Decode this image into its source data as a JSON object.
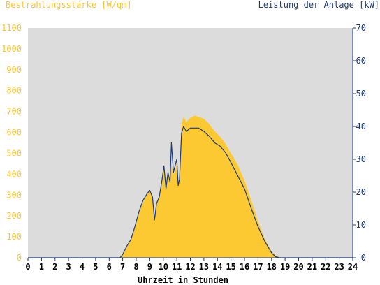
{
  "colors": {
    "irradiance_fill": "#fdc932",
    "power_line": "#1e3a78",
    "plot_background": "#dcdcdc",
    "left_axis_text": "#fcc72f",
    "right_axis_text": "#1e3a78"
  },
  "chart_data": {
    "type": "area",
    "title": "",
    "left_axis_title": "Bestrahlungsstärke [W/qm]",
    "right_axis_title": "Leistung der Anlage [kW]",
    "xlabel": "Uhrzeit in Stunden",
    "xlim": [
      0,
      24
    ],
    "ylim_left": [
      0,
      1100
    ],
    "ylim_right": [
      0,
      70
    ],
    "x_ticks": [
      "0",
      "1",
      "2",
      "3",
      "4",
      "5",
      "6",
      "7",
      "8",
      "9",
      "10",
      "11",
      "12",
      "13",
      "14",
      "15",
      "16",
      "17",
      "18",
      "19",
      "20",
      "21",
      "22",
      "23",
      "24"
    ],
    "y_ticks_left": [
      "0",
      "100",
      "200",
      "300",
      "400",
      "500",
      "600",
      "700",
      "800",
      "900",
      "1000",
      "1100"
    ],
    "y_ticks_right": [
      "0",
      "10",
      "20",
      "30",
      "40",
      "50",
      "60",
      "70"
    ],
    "grid": false,
    "series": [
      {
        "name": "Bestrahlungsstärke [W/qm]",
        "type": "area",
        "axis": "left",
        "x": [
          0,
          6.7,
          7.0,
          7.3,
          7.6,
          7.9,
          8.2,
          8.5,
          8.8,
          9.0,
          9.2,
          9.35,
          9.5,
          9.7,
          9.9,
          10.05,
          10.2,
          10.35,
          10.5,
          10.6,
          10.75,
          10.9,
          11.0,
          11.1,
          11.2,
          11.35,
          11.5,
          11.7,
          12.0,
          12.3,
          12.6,
          13.0,
          13.4,
          13.8,
          14.2,
          14.6,
          15.0,
          15.5,
          16.0,
          16.5,
          17.0,
          17.5,
          18.0,
          18.3,
          18.6,
          18.9,
          19.2,
          24
        ],
        "values": [
          0,
          0,
          15,
          55,
          85,
          150,
          215,
          265,
          305,
          325,
          300,
          200,
          270,
          290,
          370,
          450,
          330,
          420,
          360,
          450,
          400,
          420,
          460,
          360,
          380,
          640,
          675,
          650,
          670,
          680,
          675,
          665,
          640,
          605,
          580,
          545,
          500,
          445,
          370,
          275,
          175,
          90,
          30,
          10,
          3,
          0,
          0,
          0
        ]
      },
      {
        "name": "Leistung der Anlage [kW]",
        "type": "line",
        "axis": "right",
        "x": [
          0,
          6.8,
          7.0,
          7.3,
          7.6,
          7.9,
          8.2,
          8.5,
          8.8,
          9.0,
          9.2,
          9.35,
          9.5,
          9.7,
          9.9,
          10.05,
          10.2,
          10.35,
          10.5,
          10.6,
          10.75,
          10.9,
          11.0,
          11.1,
          11.2,
          11.35,
          11.5,
          11.7,
          12.0,
          12.3,
          12.6,
          13.0,
          13.4,
          13.8,
          14.2,
          14.6,
          15.0,
          15.5,
          16.0,
          16.5,
          17.0,
          17.5,
          18.0,
          18.3,
          18.6,
          18.9,
          19.2,
          24
        ],
        "values": [
          0,
          0,
          1,
          3.5,
          5.5,
          9.5,
          14,
          17.5,
          19.5,
          20.5,
          18.5,
          11.5,
          16.5,
          18.5,
          23.5,
          28,
          21,
          26,
          23,
          35,
          26,
          28.5,
          30,
          22,
          24,
          38,
          40,
          38.5,
          39.5,
          39.5,
          39.5,
          38.5,
          37,
          35,
          34,
          32,
          29,
          25,
          21,
          15,
          9.5,
          5,
          1.5,
          0.3,
          0,
          0,
          0,
          0
        ]
      }
    ]
  }
}
